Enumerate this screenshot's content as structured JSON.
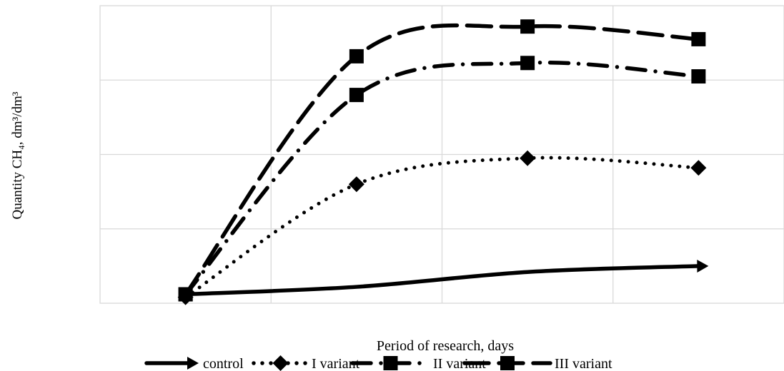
{
  "chart_data": {
    "type": "line",
    "title": "",
    "xlabel": "Period of research, days",
    "ylabel": "Quantity CH₄, dm³/dm³",
    "x": [
      0,
      1,
      2,
      3
    ],
    "xlim": [
      -0.5,
      3.5
    ],
    "ylim": [
      0,
      4
    ],
    "grid": true,
    "legend": "bottom",
    "series": [
      {
        "name": "control",
        "values": [
          0.12,
          0.22,
          0.42,
          0.5
        ],
        "style": "solid",
        "marker": "arrow"
      },
      {
        "name": "I variant",
        "values": [
          0.08,
          1.6,
          1.95,
          1.82
        ],
        "style": "dotted",
        "marker": "diamond"
      },
      {
        "name": "II variant",
        "values": [
          0.12,
          2.8,
          3.23,
          3.05
        ],
        "style": "dashdot",
        "marker": "square"
      },
      {
        "name": "III variant",
        "values": [
          0.12,
          3.32,
          3.72,
          3.55
        ],
        "style": "longdash",
        "marker": "square"
      }
    ]
  }
}
